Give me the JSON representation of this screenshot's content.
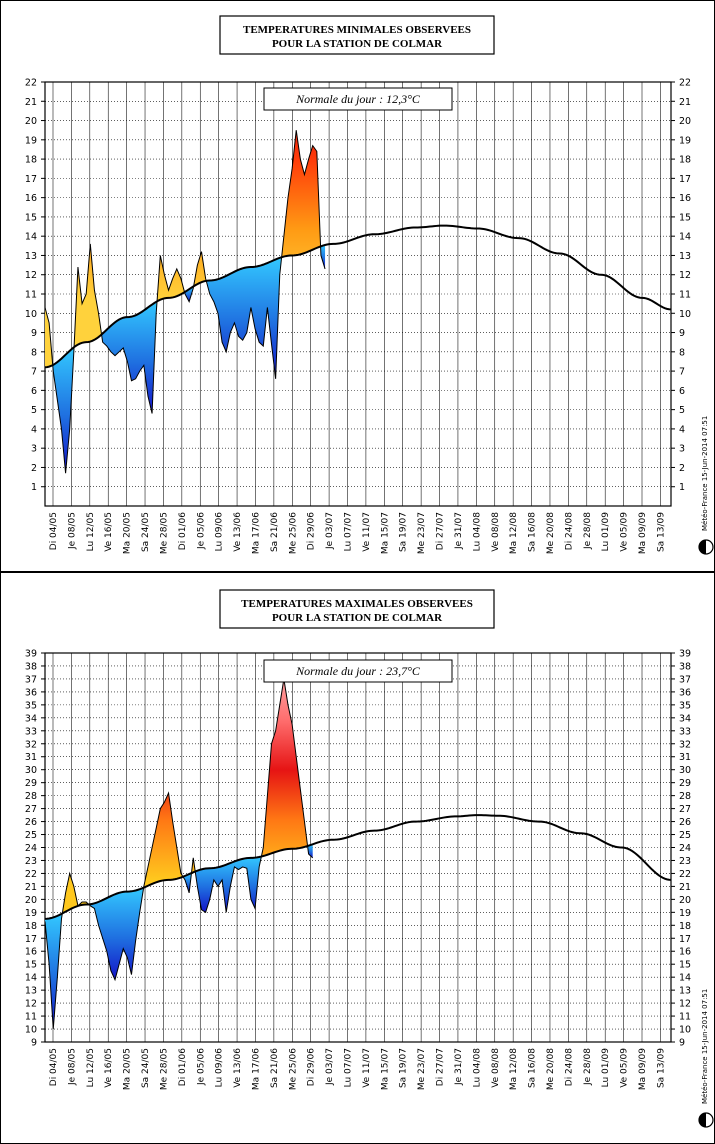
{
  "chart_data": [
    {
      "type": "area",
      "title": [
        "TEMPERATURES MINIMALES OBSERVEES",
        "POUR LA STATION DE COLMAR"
      ],
      "normale_label": "Normale du jour : 12,3°C",
      "ylim": [
        0,
        22
      ],
      "yticks": [
        1,
        2,
        3,
        4,
        5,
        6,
        7,
        8,
        9,
        10,
        11,
        12,
        13,
        14,
        15,
        16,
        17,
        18,
        19,
        20,
        21,
        22
      ],
      "x_ticks": [
        "Di 04/05",
        "Je 08/05",
        "Lu 12/05",
        "Ve 16/05",
        "Ma 20/05",
        "Sa 24/05",
        "Me 28/05",
        "Di 01/06",
        "Je 05/06",
        "Lu 09/06",
        "Ve 13/06",
        "Ma 17/06",
        "Sa 21/06",
        "Me 25/06",
        "Di 29/06",
        "Je 03/07",
        "Lu 07/07",
        "Ve 11/07",
        "Ma 15/07",
        "Sa 19/07",
        "Me 23/07",
        "Di 27/07",
        "Je 31/07",
        "Lu 04/08",
        "Ve 08/08",
        "Ma 12/08",
        "Sa 16/08",
        "Me 20/08",
        "Di 24/08",
        "Je 28/08",
        "Lu 01/09",
        "Ve 05/09",
        "Ma 09/09",
        "Sa 13/09"
      ],
      "grid": true,
      "series": [
        {
          "role": "normal",
          "points": [
            [
              0,
              7.2
            ],
            [
              10,
              8.5
            ],
            [
              20,
              9.8
            ],
            [
              30,
              10.8
            ],
            [
              40,
              11.7
            ],
            [
              50,
              12.4
            ],
            [
              60,
              13.0
            ],
            [
              70,
              13.6
            ],
            [
              80,
              14.1
            ],
            [
              90,
              14.45
            ],
            [
              97,
              14.55
            ],
            [
              105,
              14.4
            ],
            [
              115,
              13.9
            ],
            [
              125,
              13.1
            ],
            [
              135,
              12.0
            ],
            [
              145,
              10.8
            ],
            [
              152,
              10.2
            ]
          ]
        },
        {
          "role": "observed",
          "points": [
            [
              0,
              10.3
            ],
            [
              1,
              9.5
            ],
            [
              2,
              7.0
            ],
            [
              3,
              5.5
            ],
            [
              4,
              4.0
            ],
            [
              5,
              1.7
            ],
            [
              6,
              4.0
            ],
            [
              7,
              8.0
            ],
            [
              8,
              12.4
            ],
            [
              9,
              10.5
            ],
            [
              10,
              11.0
            ],
            [
              11,
              13.6
            ],
            [
              12,
              11.2
            ],
            [
              13,
              10.0
            ],
            [
              14,
              8.5
            ],
            [
              15,
              8.3
            ],
            [
              16,
              8.0
            ],
            [
              17,
              7.8
            ],
            [
              18,
              8.0
            ],
            [
              19,
              8.2
            ],
            [
              20,
              7.5
            ],
            [
              21,
              6.5
            ],
            [
              22,
              6.6
            ],
            [
              23,
              7.0
            ],
            [
              24,
              7.3
            ],
            [
              25,
              5.7
            ],
            [
              26,
              4.8
            ],
            [
              27,
              10.0
            ],
            [
              28,
              13.0
            ],
            [
              29,
              12.0
            ],
            [
              30,
              11.2
            ],
            [
              31,
              11.8
            ],
            [
              32,
              12.3
            ],
            [
              33,
              11.8
            ],
            [
              34,
              11.0
            ],
            [
              35,
              10.6
            ],
            [
              36,
              11.3
            ],
            [
              37,
              12.5
            ],
            [
              38,
              13.2
            ],
            [
              39,
              11.8
            ],
            [
              40,
              11.0
            ],
            [
              41,
              10.6
            ],
            [
              42,
              10.0
            ],
            [
              43,
              8.5
            ],
            [
              44,
              8.0
            ],
            [
              45,
              9.0
            ],
            [
              46,
              9.5
            ],
            [
              47,
              8.8
            ],
            [
              48,
              8.6
            ],
            [
              49,
              9.0
            ],
            [
              50,
              10.3
            ],
            [
              51,
              9.2
            ],
            [
              52,
              8.5
            ],
            [
              53,
              8.3
            ],
            [
              54,
              10.3
            ],
            [
              55,
              8.4
            ],
            [
              56,
              6.6
            ],
            [
              57,
              12.0
            ],
            [
              58,
              14.0
            ],
            [
              59,
              16.0
            ],
            [
              60,
              17.5
            ],
            [
              61,
              19.5
            ],
            [
              62,
              18.0
            ],
            [
              63,
              17.2
            ],
            [
              64,
              18.0
            ],
            [
              65,
              18.7
            ],
            [
              66,
              18.4
            ],
            [
              67,
              13.0
            ],
            [
              68,
              12.3
            ]
          ]
        }
      ]
    },
    {
      "type": "area",
      "title": [
        "TEMPERATURES MAXIMALES OBSERVEES",
        "POUR LA STATION DE COLMAR"
      ],
      "normale_label": "Normale du jour : 23,7°C",
      "ylim": [
        9,
        39
      ],
      "yticks": [
        9,
        10,
        11,
        12,
        13,
        14,
        15,
        16,
        17,
        18,
        19,
        20,
        21,
        22,
        23,
        24,
        25,
        26,
        27,
        28,
        29,
        30,
        31,
        32,
        33,
        34,
        35,
        36,
        37,
        38,
        39
      ],
      "x_ticks": [
        "Di 04/05",
        "Je 08/05",
        "Lu 12/05",
        "Ve 16/05",
        "Ma 20/05",
        "Sa 24/05",
        "Me 28/05",
        "Di 01/06",
        "Je 05/06",
        "Lu 09/06",
        "Ve 13/06",
        "Ma 17/06",
        "Sa 21/06",
        "Me 25/06",
        "Di 29/06",
        "Je 03/07",
        "Lu 07/07",
        "Ve 11/07",
        "Ma 15/07",
        "Sa 19/07",
        "Me 23/07",
        "Di 27/07",
        "Je 31/07",
        "Lu 04/08",
        "Ve 08/08",
        "Ma 12/08",
        "Sa 16/08",
        "Me 20/08",
        "Di 24/08",
        "Je 28/08",
        "Lu 01/09",
        "Ve 05/09",
        "Ma 09/09",
        "Sa 13/09"
      ],
      "grid": true,
      "series": [
        {
          "role": "normal",
          "points": [
            [
              0,
              18.5
            ],
            [
              10,
              19.6
            ],
            [
              20,
              20.6
            ],
            [
              30,
              21.5
            ],
            [
              40,
              22.4
            ],
            [
              50,
              23.2
            ],
            [
              60,
              23.9
            ],
            [
              70,
              24.6
            ],
            [
              80,
              25.3
            ],
            [
              90,
              26.0
            ],
            [
              100,
              26.4
            ],
            [
              105,
              26.5
            ],
            [
              110,
              26.45
            ],
            [
              120,
              26.0
            ],
            [
              130,
              25.1
            ],
            [
              140,
              24.0
            ],
            [
              152,
              21.5
            ]
          ]
        },
        {
          "role": "observed",
          "points": [
            [
              0,
              18.3
            ],
            [
              1,
              15.0
            ],
            [
              2,
              10.0
            ],
            [
              3,
              14.0
            ],
            [
              4,
              18.5
            ],
            [
              5,
              20.5
            ],
            [
              6,
              22.0
            ],
            [
              7,
              21.0
            ],
            [
              8,
              19.5
            ],
            [
              9,
              19.8
            ],
            [
              10,
              19.8
            ],
            [
              11,
              19.5
            ],
            [
              12,
              19.3
            ],
            [
              13,
              18.0
            ],
            [
              14,
              17.0
            ],
            [
              15,
              16.0
            ],
            [
              16,
              14.5
            ],
            [
              17,
              13.8
            ],
            [
              18,
              15.0
            ],
            [
              19,
              16.2
            ],
            [
              20,
              15.5
            ],
            [
              21,
              14.2
            ],
            [
              22,
              16.8
            ],
            [
              23,
              19.0
            ],
            [
              24,
              21.0
            ],
            [
              25,
              22.5
            ],
            [
              26,
              24.0
            ],
            [
              27,
              25.5
            ],
            [
              28,
              27.0
            ],
            [
              29,
              27.5
            ],
            [
              30,
              28.2
            ],
            [
              31,
              26.0
            ],
            [
              32,
              24.0
            ],
            [
              33,
              22.0
            ],
            [
              34,
              21.5
            ],
            [
              35,
              20.5
            ],
            [
              36,
              23.2
            ],
            [
              37,
              21.0
            ],
            [
              38,
              19.2
            ],
            [
              39,
              19.0
            ],
            [
              40,
              20.0
            ],
            [
              41,
              21.5
            ],
            [
              42,
              21.0
            ],
            [
              43,
              21.5
            ],
            [
              44,
              19.0
            ],
            [
              45,
              21.0
            ],
            [
              46,
              22.5
            ],
            [
              47,
              22.3
            ],
            [
              48,
              22.5
            ],
            [
              49,
              22.4
            ],
            [
              50,
              20.0
            ],
            [
              51,
              19.3
            ],
            [
              52,
              22.5
            ],
            [
              53,
              24.0
            ],
            [
              54,
              28.0
            ],
            [
              55,
              32.0
            ],
            [
              56,
              33.0
            ],
            [
              57,
              35.0
            ],
            [
              58,
              37.0
            ],
            [
              59,
              35.0
            ],
            [
              60,
              33.5
            ],
            [
              61,
              31.0
            ],
            [
              62,
              28.5
            ],
            [
              63,
              26.0
            ],
            [
              64,
              23.5
            ],
            [
              65,
              23.2
            ]
          ]
        }
      ]
    }
  ],
  "stamp": "Météo-France 15-Jun-2014 07:51"
}
